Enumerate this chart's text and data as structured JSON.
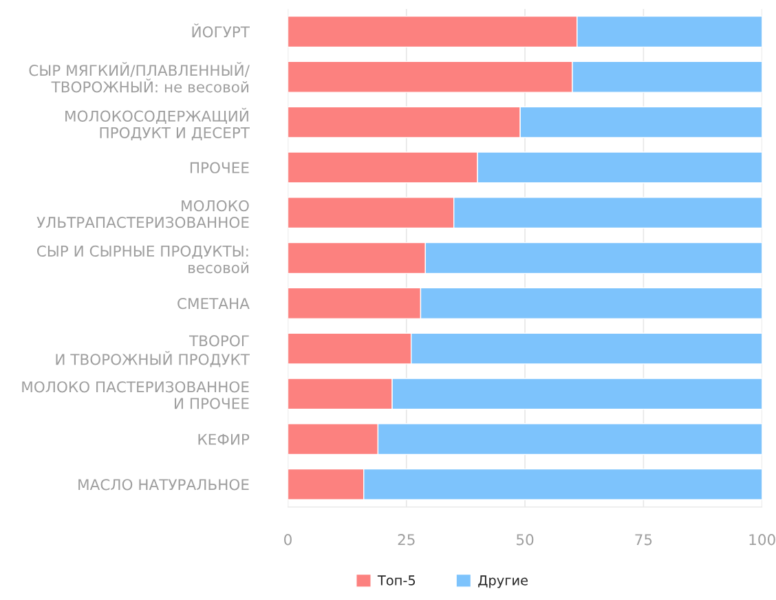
{
  "chart_data": {
    "type": "bar",
    "orientation": "horizontal",
    "stacked": true,
    "categories": [
      "ЙОГУРТ",
      "СЫР МЯГКИЙ/ПЛАВЛЕННЫЙ/\nТВОРОЖНЫЙ: не весовой",
      "МОЛОКОСОДЕРЖАЩИЙ\nПРОДУКТ И ДЕСЕРТ",
      "ПРОЧЕЕ",
      "МОЛОКО\nУЛЬТРАПАСТЕРИЗОВАННОЕ",
      "СЫР И СЫРНЫЕ ПРОДУКТЫ:\nвесовой",
      "СМЕТАНА",
      "ТВОРОГ\nИ ТВОРОЖНЫЙ ПРОДУКТ",
      "МОЛОКО ПАСТЕРИЗОВАННОЕ\nИ ПРОЧЕЕ",
      "КЕФИР",
      "МАСЛО НАТУРАЛЬНОЕ"
    ],
    "series": [
      {
        "name": "Топ-5",
        "color": "#fc817f",
        "values": [
          61,
          60,
          49,
          40,
          35,
          29,
          28,
          26,
          22,
          19,
          16
        ]
      },
      {
        "name": "Другие",
        "color": "#7dc3fc",
        "values": [
          39,
          40,
          51,
          60,
          65,
          71,
          72,
          74,
          78,
          81,
          84
        ]
      }
    ],
    "xlim": [
      0,
      100
    ],
    "xticks": [
      0,
      25,
      50,
      75,
      100
    ],
    "grid": "x",
    "legend": "bottom"
  }
}
